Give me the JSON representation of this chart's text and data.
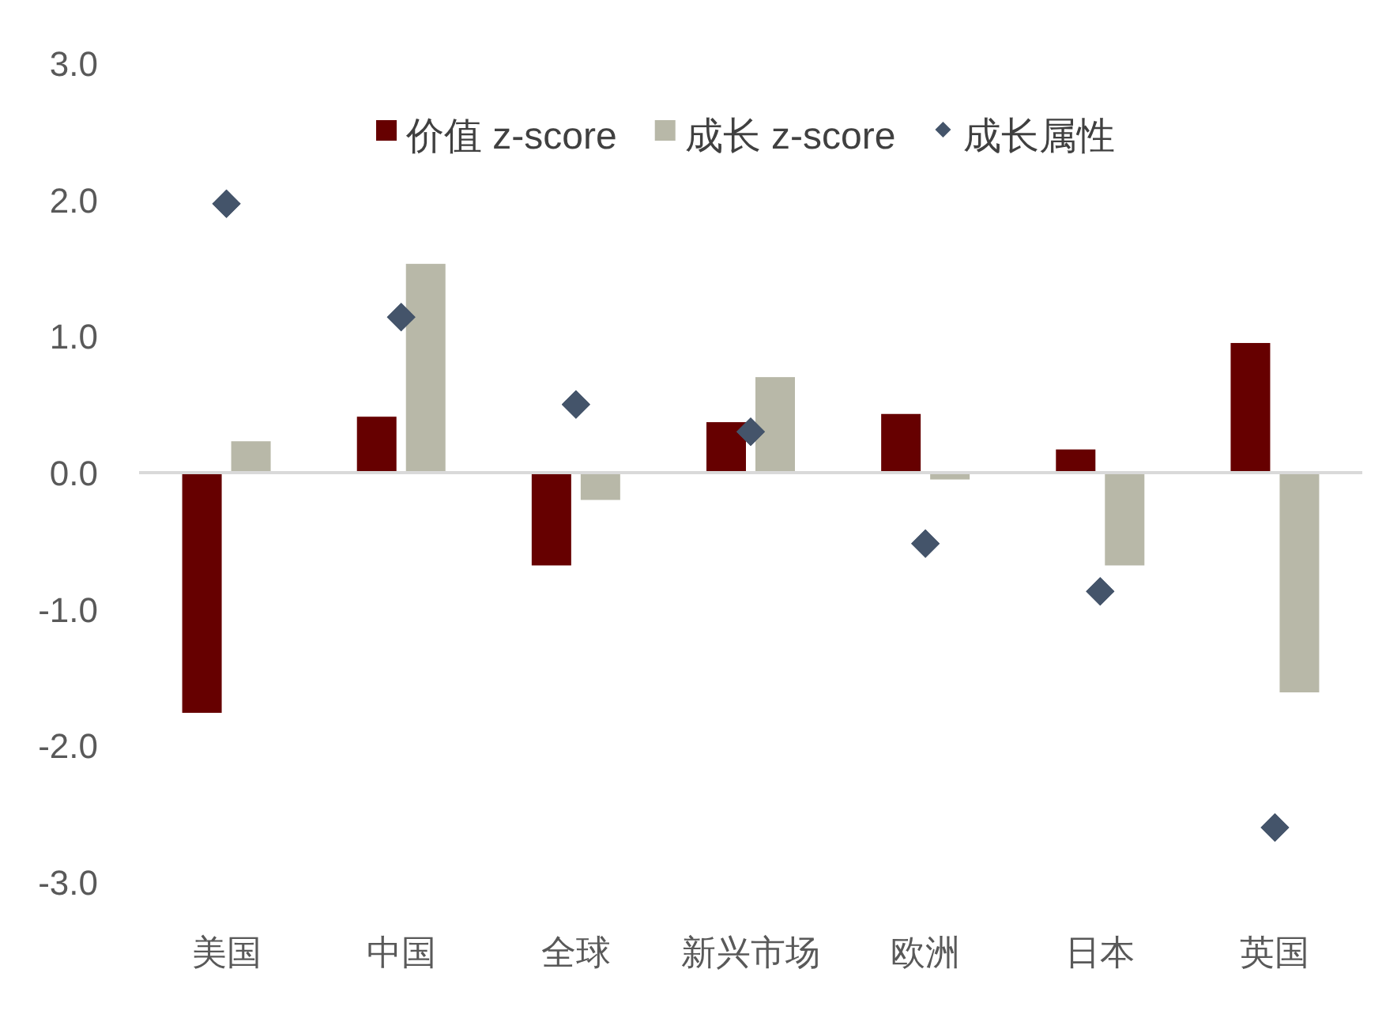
{
  "chart_data": {
    "type": "bar",
    "categories": [
      "美国",
      "中国",
      "全球",
      "新兴市场",
      "欧洲",
      "日本",
      "英国"
    ],
    "series": [
      {
        "name": "价值 z-score",
        "color": "#660000",
        "values": [
          -1.76,
          0.41,
          -0.68,
          0.37,
          0.43,
          0.17,
          0.95
        ]
      },
      {
        "name": "成长 z-score",
        "color": "#b8b8a8",
        "values": [
          0.23,
          1.53,
          -0.2,
          0.7,
          -0.05,
          -0.68,
          -1.61
        ]
      },
      {
        "name": "成长属性",
        "type": "scatter",
        "marker": "diamond",
        "color": "#44546a",
        "values": [
          1.97,
          1.14,
          0.5,
          0.3,
          -0.52,
          -0.87,
          -2.6
        ]
      }
    ],
    "ylim": [
      -3,
      3
    ],
    "yticks": [
      {
        "value": -3,
        "label": "-3.0"
      },
      {
        "value": -2,
        "label": "-2.0"
      },
      {
        "value": -1,
        "label": "-1.0"
      },
      {
        "value": 0,
        "label": "0.0"
      },
      {
        "value": 1,
        "label": "1.0"
      },
      {
        "value": 2,
        "label": "2.0"
      },
      {
        "value": 3,
        "label": "3.0"
      }
    ],
    "legend": "top"
  }
}
